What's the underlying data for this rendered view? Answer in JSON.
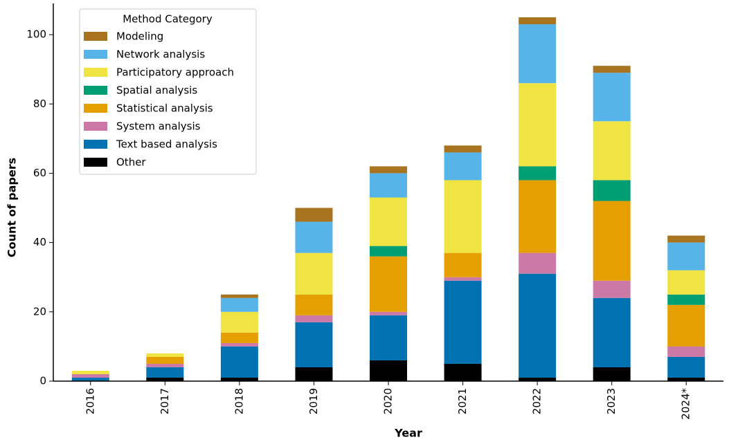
{
  "chart_data": {
    "type": "stacked_bar",
    "xlabel": "Year",
    "ylabel": "Count of papers",
    "categories": [
      "2016",
      "2017",
      "2018",
      "2019",
      "2020",
      "2021",
      "2022",
      "2023",
      "2024*"
    ],
    "legend_title": "Method Category",
    "legend": "upper left",
    "ylim": [
      0,
      109
    ],
    "yticks": [
      0,
      20,
      40,
      60,
      80,
      100
    ],
    "series": [
      {
        "name": "Modeling",
        "color": "#a87420",
        "values": [
          0,
          0,
          1,
          4,
          2,
          2,
          2,
          2,
          2
        ]
      },
      {
        "name": "Network analysis",
        "color": "#56b4e9",
        "values": [
          0,
          0,
          4,
          9,
          7,
          8,
          17,
          14,
          8
        ]
      },
      {
        "name": "Participatory approach",
        "color": "#f0e442",
        "values": [
          1,
          1,
          6,
          12,
          14,
          21,
          24,
          17,
          7
        ]
      },
      {
        "name": "Spatial analysis",
        "color": "#009e73",
        "values": [
          0,
          0,
          0,
          0,
          3,
          0,
          4,
          6,
          3
        ]
      },
      {
        "name": "Statistical analysis",
        "color": "#e69f00",
        "values": [
          0,
          2,
          3,
          6,
          16,
          7,
          21,
          23,
          12
        ]
      },
      {
        "name": "System analysis",
        "color": "#cc79a7",
        "values": [
          1,
          1,
          1,
          2,
          1,
          1,
          6,
          5,
          3
        ]
      },
      {
        "name": "Text based analysis",
        "color": "#0072b2",
        "values": [
          1,
          3,
          9,
          13,
          13,
          24,
          30,
          20,
          6
        ]
      },
      {
        "name": "Other",
        "color": "#000000",
        "values": [
          0,
          1,
          1,
          4,
          6,
          5,
          1,
          4,
          1
        ]
      }
    ]
  }
}
